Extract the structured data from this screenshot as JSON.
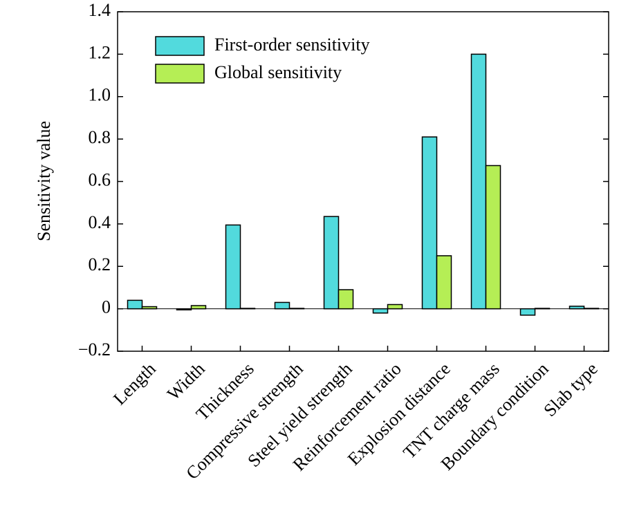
{
  "chart_data": {
    "type": "bar",
    "y_label": "Sensitivity value",
    "categories": [
      "Length",
      "Width",
      "Thickness",
      "Compressive strength",
      "Steel yield strength",
      "Reinforcement ratio",
      "Explosion distance",
      "TNT charge mass",
      "Boundary condition",
      "Slab type"
    ],
    "series": [
      {
        "name": "First-order sensitivity",
        "color": "#52dadd",
        "values": [
          0.04,
          -0.005,
          0.395,
          0.03,
          0.435,
          -0.02,
          0.81,
          1.2,
          -0.03,
          0.012
        ]
      },
      {
        "name": "Global sensitivity",
        "color": "#b5ee55",
        "values": [
          0.01,
          0.015,
          0.002,
          0.002,
          0.09,
          0.02,
          0.25,
          0.675,
          0.002,
          0.002
        ]
      }
    ],
    "ylim": [
      -0.2,
      1.4
    ],
    "yticks": [
      {
        "value": -0.2,
        "label": "−0.2"
      },
      0,
      0.2,
      0.4,
      0.6,
      0.8,
      {
        "value": 1.0,
        "label": "1.0"
      },
      1.2,
      1.4
    ],
    "legend": "upper left"
  }
}
